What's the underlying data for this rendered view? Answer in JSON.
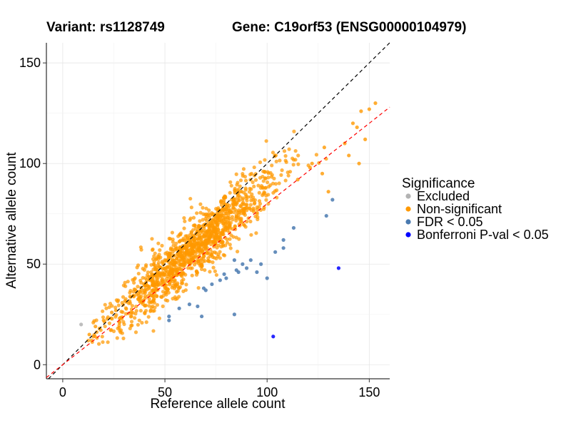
{
  "chart_data": {
    "type": "scatter",
    "title_left": "Variant: rs1128749",
    "title_right": "Gene: C19orf53 (ENSG00000104979)",
    "xlabel": "Reference allele count",
    "ylabel": "Alternative allele count",
    "xlim": [
      -8,
      160
    ],
    "ylim": [
      -7,
      160
    ],
    "xticks": [
      0,
      50,
      100,
      150
    ],
    "yticks": [
      0,
      50,
      100,
      150
    ],
    "grid": true,
    "legend": {
      "title": "Significance",
      "placement": "right",
      "entries": [
        {
          "label": "Excluded",
          "color": "#b3b3b3"
        },
        {
          "label": "Non-significant",
          "color": "#ff9900"
        },
        {
          "label": "FDR < 0.05",
          "color": "#4a7ab0"
        },
        {
          "label": "Bonferroni P-val < 0.05",
          "color": "#0000ff"
        }
      ]
    },
    "reference_lines": [
      {
        "name": "y = x",
        "slope": 1.0,
        "intercept": 0,
        "color": "#000000"
      },
      {
        "name": "fit",
        "slope": 0.8,
        "intercept": 0,
        "color": "#ff0000"
      }
    ],
    "series": [
      {
        "category": "Excluded",
        "color": "#b3b3b3",
        "points": [
          [
            9,
            20
          ]
        ]
      },
      {
        "category": "FDR < 0.05",
        "color": "#4a7ab0",
        "points": [
          [
            52,
            22
          ],
          [
            52,
            24
          ],
          [
            57,
            28
          ],
          [
            62,
            30
          ],
          [
            66,
            29
          ],
          [
            68,
            24
          ],
          [
            69,
            38
          ],
          [
            70,
            37
          ],
          [
            73,
            40
          ],
          [
            77,
            42
          ],
          [
            79,
            45
          ],
          [
            80,
            43
          ],
          [
            84,
            25
          ],
          [
            84,
            52
          ],
          [
            85,
            47
          ],
          [
            86,
            46
          ],
          [
            88,
            50
          ],
          [
            90,
            48
          ],
          [
            92,
            52
          ],
          [
            95,
            46
          ],
          [
            97,
            50
          ],
          [
            100,
            43
          ],
          [
            104,
            56
          ],
          [
            108,
            62
          ],
          [
            108,
            58
          ],
          [
            113,
            68
          ],
          [
            129,
            74
          ],
          [
            132,
            82
          ]
        ]
      },
      {
        "category": "Bonferroni P-val < 0.05",
        "color": "#0000ff",
        "points": [
          [
            103,
            14
          ],
          [
            135,
            48
          ]
        ]
      },
      {
        "category": "Non-significant",
        "color": "#ff9900",
        "generated": {
          "count": 1300,
          "x_mean": 63,
          "x_sd": 20,
          "slope": 0.9,
          "residual_sd": 7.5,
          "x_range": [
            12,
            153
          ],
          "extra_points": [
            [
              13,
              15
            ],
            [
              16,
              19
            ],
            [
              18,
              18
            ],
            [
              20,
              22
            ],
            [
              24,
              26
            ],
            [
              26,
              27
            ],
            [
              138,
              110
            ],
            [
              142,
              120
            ],
            [
              144,
              118
            ],
            [
              146,
              126
            ],
            [
              150,
              127
            ],
            [
              153,
              130
            ],
            [
              148,
              112
            ],
            [
              145,
              100
            ],
            [
              140,
              104
            ],
            [
              128,
              108
            ],
            [
              122,
              100
            ],
            [
              115,
              92
            ],
            [
              121,
              98
            ],
            [
              130,
              86
            ],
            [
              127,
              95
            ]
          ]
        }
      }
    ]
  }
}
